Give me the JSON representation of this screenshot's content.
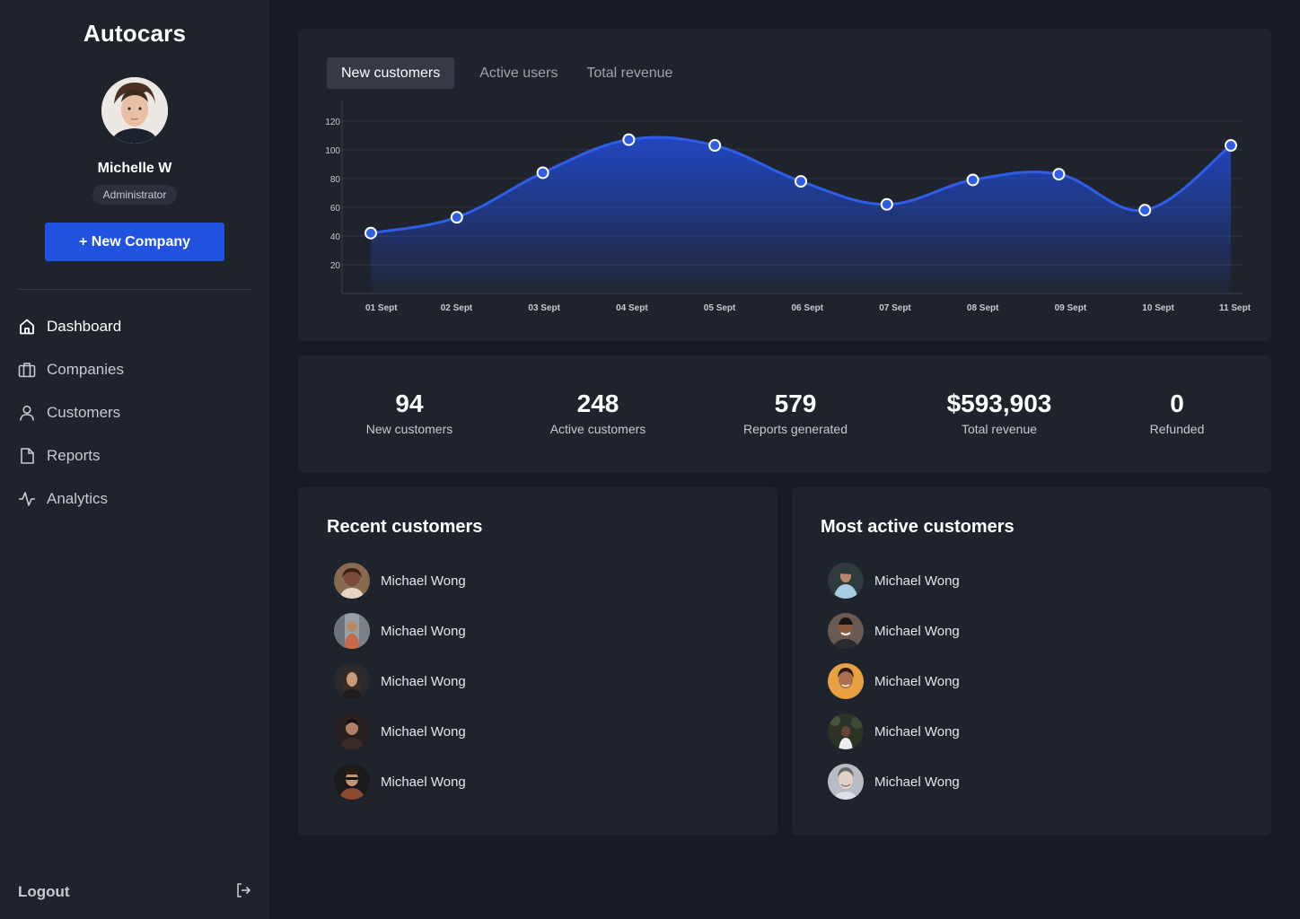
{
  "app": {
    "brand": "Autocars"
  },
  "user": {
    "name": "Michelle W",
    "role": "Administrator"
  },
  "actions": {
    "new_company": "+ New Company"
  },
  "nav": [
    {
      "label": "Dashboard",
      "icon": "home-icon",
      "active": true
    },
    {
      "label": "Companies",
      "icon": "briefcase-icon",
      "active": false
    },
    {
      "label": "Customers",
      "icon": "user-icon",
      "active": false
    },
    {
      "label": "Reports",
      "icon": "file-icon",
      "active": false
    },
    {
      "label": "Analytics",
      "icon": "activity-icon",
      "active": false
    }
  ],
  "logout": {
    "label": "Logout",
    "icon": "logout-icon"
  },
  "tabs": [
    {
      "label": "New customers",
      "active": true
    },
    {
      "label": "Active users",
      "active": false
    },
    {
      "label": "Total revenue",
      "active": false
    }
  ],
  "chart_data": {
    "type": "area",
    "categories": [
      "01 Sept",
      "02 Sept",
      "03 Sept",
      "04 Sept",
      "05 Sept",
      "06 Sept",
      "07 Sept",
      "08 Sept",
      "09 Sept",
      "10 Sept",
      "11 Sept"
    ],
    "values": [
      42,
      53,
      84,
      107,
      103,
      78,
      62,
      79,
      83,
      58,
      103
    ],
    "yticks": [
      20,
      40,
      60,
      80,
      100,
      120
    ],
    "ylim": [
      0,
      128
    ],
    "grid": true,
    "line_color": "#2f5de8",
    "fill_color": "#2148c9"
  },
  "stats": [
    {
      "value": "94",
      "label": "New customers"
    },
    {
      "value": "248",
      "label": "Active customers"
    },
    {
      "value": "579",
      "label": "Reports generated"
    },
    {
      "value": "$593,903",
      "label": "Total revenue"
    },
    {
      "value": "0",
      "label": "Refunded"
    }
  ],
  "recent_customers": {
    "title": "Recent customers",
    "items": [
      {
        "name": "Michael Wong"
      },
      {
        "name": "Michael Wong"
      },
      {
        "name": "Michael Wong"
      },
      {
        "name": "Michael Wong"
      },
      {
        "name": "Michael Wong"
      }
    ]
  },
  "active_customers": {
    "title": "Most active customers",
    "items": [
      {
        "name": "Michael Wong"
      },
      {
        "name": "Michael Wong"
      },
      {
        "name": "Michael Wong"
      },
      {
        "name": "Michael Wong"
      },
      {
        "name": "Michael Wong"
      }
    ]
  },
  "colors": {
    "accent": "#2253e0",
    "sidebar": "#1f232c",
    "background": "#161a22"
  }
}
